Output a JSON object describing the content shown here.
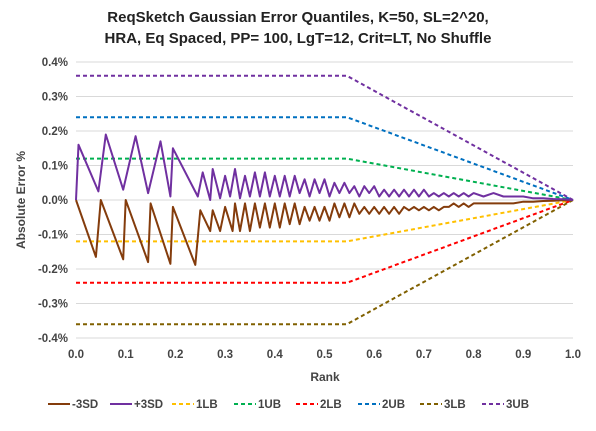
{
  "chart_data": {
    "type": "line",
    "title_lines": [
      "ReqSketch Gaussian Error Quantiles, K=50, SL=2^20,",
      "HRA, Eq Spaced, PP= 100, LgT=12, Crit=LT, No Shuffle"
    ],
    "xlabel": "Rank",
    "ylabel": "Absolute Error %",
    "xlim": [
      0,
      1
    ],
    "ylim": [
      -0.004,
      0.004
    ],
    "x_ticks": [
      0,
      0.1,
      0.2,
      0.3,
      0.4,
      0.5,
      0.6,
      0.7,
      0.8,
      0.9,
      1
    ],
    "x_tick_labels": [
      "0.0",
      "0.1",
      "0.2",
      "0.3",
      "0.4",
      "0.5",
      "0.6",
      "0.7",
      "0.8",
      "0.9",
      "1.0"
    ],
    "y_ticks": [
      0.004,
      0.003,
      0.002,
      0.001,
      0,
      -0.001,
      -0.002,
      -0.003,
      -0.004
    ],
    "y_tick_labels": [
      "0.4%",
      "0.3%",
      "0.2%",
      "0.1%",
      "0.0%",
      "-0.1%",
      "-0.2%",
      "-0.3%",
      "-0.4%"
    ],
    "grid": "horizontal",
    "legend_position": "bottom",
    "series": [
      {
        "name": "-3SD",
        "color": "#843C0C",
        "dash": "solid",
        "x": [
          0,
          0.04,
          0.05,
          0.095,
          0.1,
          0.145,
          0.15,
          0.19,
          0.195,
          0.24,
          0.25,
          0.27,
          0.275,
          0.29,
          0.3,
          0.315,
          0.32,
          0.33,
          0.34,
          0.35,
          0.36,
          0.37,
          0.38,
          0.39,
          0.4,
          0.41,
          0.42,
          0.43,
          0.44,
          0.45,
          0.46,
          0.47,
          0.48,
          0.49,
          0.5,
          0.51,
          0.52,
          0.53,
          0.54,
          0.55,
          0.56,
          0.57,
          0.58,
          0.59,
          0.6,
          0.61,
          0.62,
          0.63,
          0.64,
          0.65,
          0.66,
          0.67,
          0.68,
          0.69,
          0.7,
          0.71,
          0.72,
          0.73,
          0.74,
          0.75,
          0.76,
          0.77,
          0.78,
          0.79,
          0.8,
          0.82,
          0.84,
          0.86,
          0.88,
          0.9,
          0.92,
          0.94,
          0.96,
          0.98,
          1.0
        ],
        "y": [
          0,
          -0.00165,
          0,
          -0.00172,
          0,
          -0.0018,
          -0.0001,
          -0.00185,
          -0.0002,
          -0.00188,
          -0.0003,
          -0.0009,
          -0.0003,
          -0.0009,
          -0.0002,
          -0.0009,
          -0.0001,
          -0.0009,
          -0.0001,
          -0.0009,
          -0.0001,
          -0.0008,
          -0.0001,
          -0.0008,
          -0.0001,
          -0.0008,
          -0.0001,
          -0.0007,
          -0.0001,
          -0.0007,
          -0.0002,
          -0.0006,
          -0.0002,
          -0.0006,
          -0.0002,
          -0.0006,
          -0.0001,
          -0.0005,
          -0.0001,
          -0.0005,
          -0.0001,
          -0.0004,
          -0.0002,
          -0.0004,
          -0.0002,
          -0.0004,
          -0.0002,
          -0.0004,
          -0.0002,
          -0.0004,
          -0.0002,
          -0.0003,
          -0.0002,
          -0.0003,
          -0.0002,
          -0.0003,
          -0.0002,
          -0.0003,
          -0.0002,
          -0.0002,
          -0.0001,
          -0.0002,
          -0.0001,
          -0.0002,
          -0.0001,
          -0.0001,
          -0.0001,
          -0.0001,
          -0.0001,
          -5e-05,
          -5e-05,
          -3e-05,
          -2e-05,
          -1e-05,
          0
        ]
      },
      {
        "name": "+3SD",
        "color": "#7030A0",
        "dash": "solid",
        "x": [
          0,
          0.005,
          0.045,
          0.06,
          0.095,
          0.12,
          0.145,
          0.17,
          0.19,
          0.195,
          0.245,
          0.255,
          0.27,
          0.275,
          0.29,
          0.3,
          0.31,
          0.32,
          0.33,
          0.34,
          0.35,
          0.36,
          0.37,
          0.38,
          0.39,
          0.4,
          0.41,
          0.42,
          0.43,
          0.44,
          0.45,
          0.46,
          0.47,
          0.48,
          0.49,
          0.5,
          0.51,
          0.52,
          0.53,
          0.54,
          0.55,
          0.56,
          0.57,
          0.58,
          0.59,
          0.6,
          0.61,
          0.62,
          0.63,
          0.64,
          0.65,
          0.66,
          0.67,
          0.68,
          0.69,
          0.7,
          0.71,
          0.72,
          0.73,
          0.74,
          0.75,
          0.76,
          0.77,
          0.78,
          0.79,
          0.8,
          0.82,
          0.84,
          0.86,
          0.88,
          0.9,
          0.92,
          0.94,
          0.96,
          0.98,
          1.0
        ],
        "y": [
          0,
          0.0016,
          0.00025,
          0.0019,
          0.0003,
          0.00185,
          0.0002,
          0.0017,
          0.0001,
          0.0015,
          0.0001,
          0.0008,
          0,
          0.0009,
          5e-05,
          0.0007,
          0.0001,
          0.0009,
          5e-05,
          0.0007,
          0.0001,
          0.0008,
          0.0001,
          0.0008,
          0.0001,
          0.0007,
          0.0001,
          0.0007,
          0.0001,
          0.0007,
          0.0002,
          0.0006,
          0.0001,
          0.0006,
          0.0002,
          0.0006,
          0.0001,
          0.0005,
          0.0002,
          0.0005,
          0.0002,
          0.0004,
          0.0001,
          0.0004,
          0.0002,
          0.0004,
          0.0001,
          0.0003,
          0.0001,
          0.0003,
          0.0001,
          0.0003,
          0.0001,
          0.0003,
          0.0001,
          0.0003,
          0.0001,
          0.0002,
          0.0001,
          0.0002,
          0.0001,
          0.0002,
          0.0001,
          0.0002,
          0.0001,
          0.0002,
          0.0001,
          0.0002,
          0.0001,
          0.0001,
          0.0001,
          5e-05,
          5e-05,
          3e-05,
          2e-05,
          0
        ]
      },
      {
        "name": "1LB",
        "color": "#FFC000",
        "dash": "dashed",
        "x": [
          0,
          0.545,
          1.0
        ],
        "y": [
          -0.0012,
          -0.0012,
          0
        ]
      },
      {
        "name": "1UB",
        "color": "#00B050",
        "dash": "dashed",
        "x": [
          0,
          0.545,
          1.0
        ],
        "y": [
          0.0012,
          0.0012,
          0
        ]
      },
      {
        "name": "2LB",
        "color": "#FF0000",
        "dash": "dashed",
        "x": [
          0,
          0.545,
          1.0
        ],
        "y": [
          -0.0024,
          -0.0024,
          0
        ]
      },
      {
        "name": "2UB",
        "color": "#0070C0",
        "dash": "dashed",
        "x": [
          0,
          0.545,
          1.0
        ],
        "y": [
          0.0024,
          0.0024,
          0
        ]
      },
      {
        "name": "3LB",
        "color": "#806000",
        "dash": "dashed",
        "x": [
          0,
          0.545,
          1.0
        ],
        "y": [
          -0.0036,
          -0.0036,
          0
        ]
      },
      {
        "name": "3UB",
        "color": "#7030A0",
        "dash": "dashed",
        "x": [
          0,
          0.545,
          1.0
        ],
        "y": [
          0.0036,
          0.0036,
          0
        ]
      }
    ]
  }
}
